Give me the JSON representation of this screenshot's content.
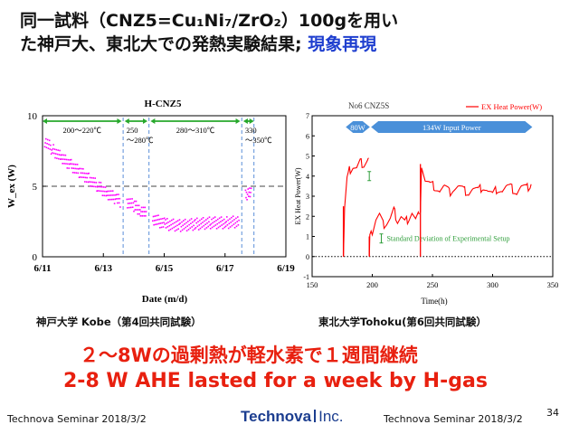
{
  "slide": {
    "title_line1": "同一試料（CNZ5=Cu₁Ni₇/ZrO₂）100gを用い",
    "title_line2_black": "た神戸大、東北大での発熱実験結果; ",
    "title_line2_blue": "現象再現",
    "caption_left": "神戸大学 Kobe（第4回共同試験）",
    "caption_right": "東北大学Tohoku(第6回共同試験）",
    "highlight_jp": "２～8Wの過剰熱が軽水素で１週間継続",
    "highlight_en": "2-8 W AHE lasted for a week by H-gas",
    "footer_left": "Technova Seminar 2018/3/2",
    "footer_right": "Technova Seminar 2018/3/2",
    "logo_left": "Technova",
    "logo_right": "Inc.",
    "page_number": "34",
    "colors": {
      "title_blue": "#1f3fcf",
      "highlight_red": "#e8200f",
      "logo_blue": "#1b3d8f"
    }
  },
  "chart_data": [
    {
      "type": "scatter",
      "title": "H-CNZ5",
      "xlabel": "Date (m/d)",
      "ylabel": "W_ex (W)",
      "x_ticks": [
        "6/11",
        "6/13",
        "6/15",
        "6/17",
        "6/19"
      ],
      "x_tick_days": [
        11,
        13,
        15,
        17,
        19
      ],
      "xlim": [
        11,
        19
      ],
      "ylim": [
        0,
        10
      ],
      "y_ticks": [
        0,
        5,
        10
      ],
      "reference_line_y": 5,
      "point_color": "#ff00ff",
      "series": [
        {
          "x": [
            11.05,
            11.3,
            11.6,
            11.9,
            12.2,
            12.5,
            12.8,
            13.1,
            13.4,
            13.55
          ],
          "y": [
            8.3,
            7.7,
            7.1,
            6.6,
            6.1,
            5.6,
            5.1,
            4.6,
            4.2,
            4.0
          ]
        },
        {
          "x": [
            13.75,
            14.0,
            14.2,
            14.4
          ],
          "y": [
            4.0,
            3.7,
            3.4,
            3.1
          ]
        },
        {
          "x": [
            14.6,
            15.0,
            15.5,
            16.0,
            16.5,
            17.0,
            17.45
          ],
          "y": [
            2.8,
            2.4,
            2.3,
            2.4,
            2.5,
            2.5,
            2.6
          ]
        },
        {
          "x": [
            17.65,
            17.75,
            17.85
          ],
          "y": [
            4.4,
            4.7,
            4.5
          ]
        }
      ],
      "phase_boundaries_x": [
        13.65,
        14.5,
        17.55,
        17.95
      ],
      "temperature_annotations": [
        {
          "label": "200～220℃",
          "x_start": 11.0,
          "x_end": 13.6
        },
        {
          "label": "250 ～280℃",
          "x_start": 13.7,
          "x_end": 14.45
        },
        {
          "label": "280～310℃",
          "x_start": 14.55,
          "x_end": 17.5
        },
        {
          "label": "330 ～350℃",
          "x_start": 17.6,
          "x_end": 17.95
        }
      ]
    },
    {
      "type": "line",
      "title": "No6 CNZ5S",
      "legend": "EX Heat Power(W)",
      "xlabel": "Time(h)",
      "ylabel": "EX Heat Power(W)",
      "xlim": [
        150,
        350
      ],
      "ylim": [
        -1,
        7
      ],
      "x_ticks": [
        150,
        200,
        250,
        300,
        350
      ],
      "y_ticks": [
        -1,
        0,
        1,
        2,
        3,
        4,
        5,
        6,
        7
      ],
      "baseline_y": 0,
      "line_color": "#ff0000",
      "input_power_labels": [
        {
          "label": "80W",
          "x_start": 178,
          "x_end": 198
        },
        {
          "label": "134W Input Power",
          "x_start": 199,
          "x_end": 333
        }
      ],
      "annotation": "Standard Deviation of Experimental Setup",
      "series": [
        {
          "x": [
            176,
            177,
            179,
            181,
            184,
            187,
            190,
            193,
            196,
            197
          ],
          "y": [
            0,
            2.5,
            3.9,
            4.3,
            4.5,
            4.4,
            4.7,
            4.6,
            4.8,
            4.9
          ]
        },
        {
          "x": [
            197.5,
            198,
            200,
            203,
            206,
            209,
            212,
            215,
            218,
            221,
            224,
            227,
            230,
            233,
            236,
            239
          ],
          "y": [
            0,
            1.0,
            1.3,
            1.9,
            2.1,
            1.6,
            1.7,
            1.9,
            2.3,
            1.8,
            2.0,
            1.7,
            1.9,
            2.2,
            1.8,
            2.1
          ]
        },
        {
          "x": [
            240,
            241,
            244,
            248,
            252,
            256,
            260,
            264,
            268,
            272,
            276,
            280,
            284,
            288,
            292,
            296,
            300,
            304,
            308,
            312,
            316,
            320,
            324,
            328,
            332
          ],
          "y": [
            2.2,
            4.6,
            3.8,
            3.6,
            3.5,
            3.3,
            3.5,
            3.2,
            3.4,
            3.5,
            3.3,
            3.2,
            3.4,
            3.3,
            3.5,
            3.3,
            3.1,
            3.4,
            3.3,
            3.5,
            3.4,
            3.2,
            3.5,
            3.4,
            3.6
          ]
        }
      ]
    }
  ]
}
